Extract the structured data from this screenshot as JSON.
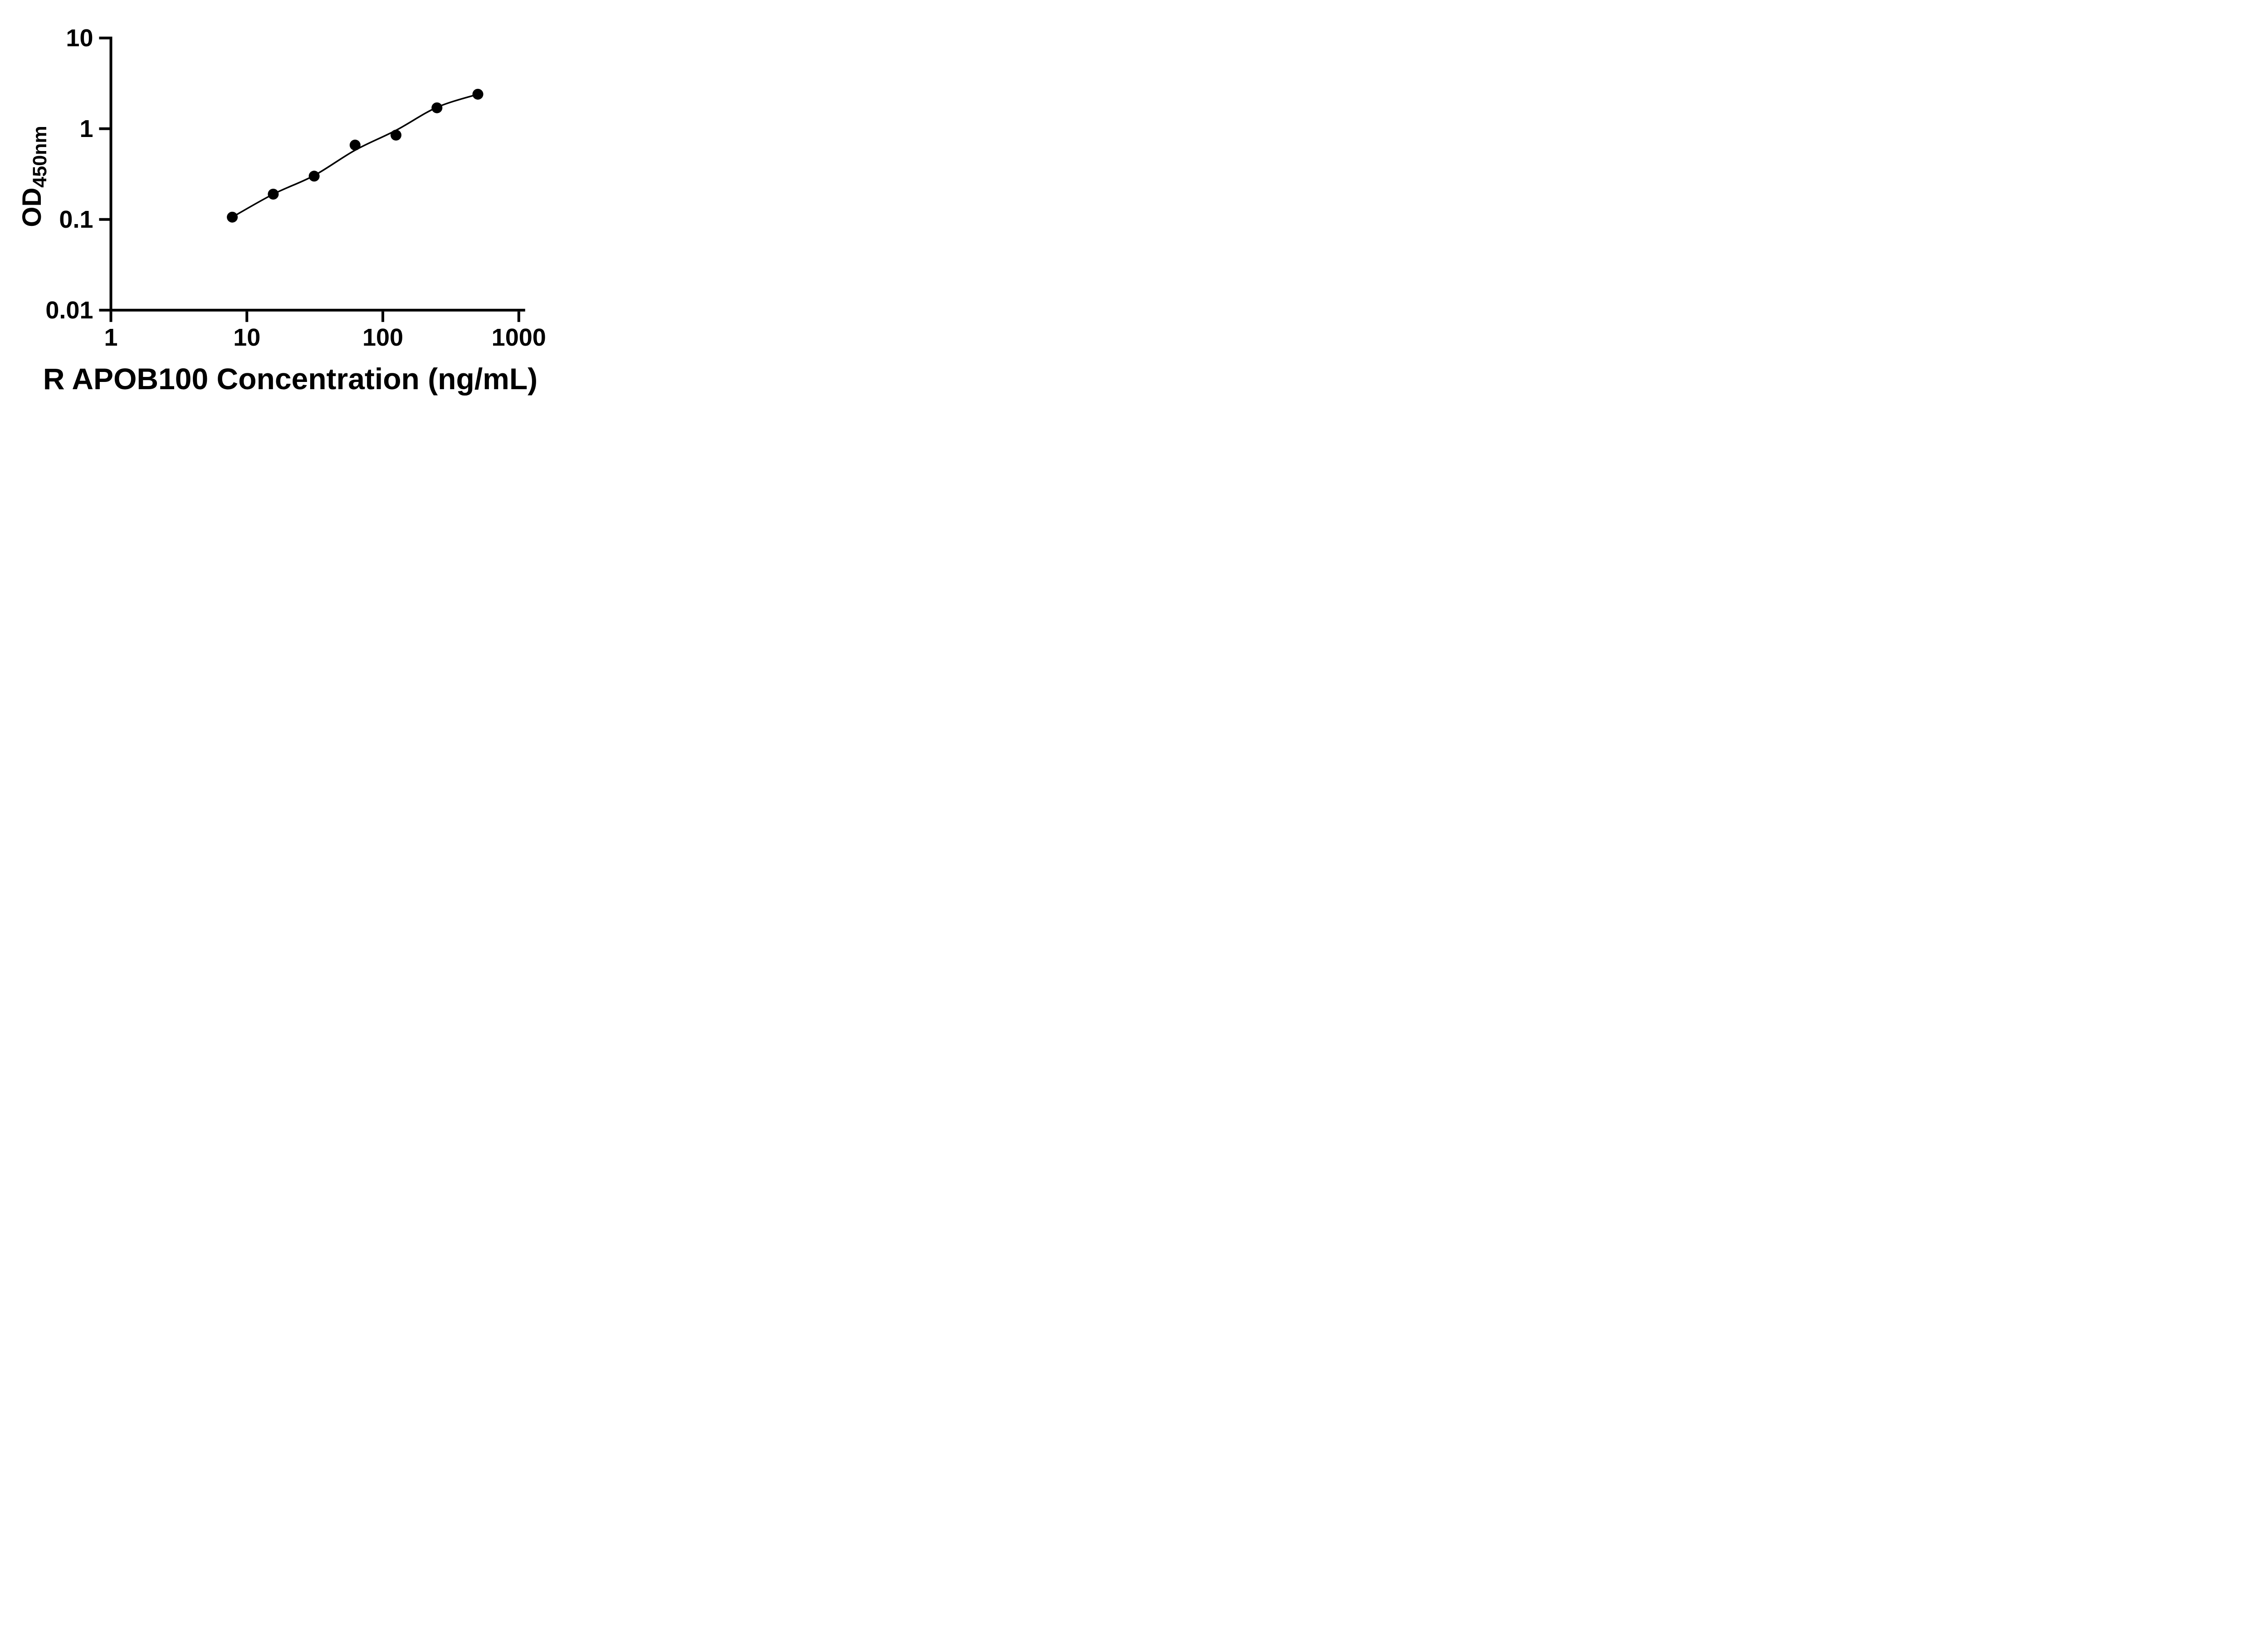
{
  "chart_data": {
    "type": "scatter",
    "title": "",
    "xlabel": "R APOB100 Concentration (ng/mL)",
    "ylabel_main": "OD",
    "ylabel_sub": "450nm",
    "x_scale": "log",
    "y_scale": "log",
    "xlim": [
      1,
      1000
    ],
    "ylim": [
      0.01,
      10
    ],
    "grid": false,
    "legend": false,
    "x_ticks": [
      {
        "value": 1,
        "label": "1"
      },
      {
        "value": 10,
        "label": "10"
      },
      {
        "value": 100,
        "label": "100"
      },
      {
        "value": 1000,
        "label": "1000"
      }
    ],
    "y_ticks": [
      {
        "value": 10,
        "label": "10"
      },
      {
        "value": 1,
        "label": "1"
      },
      {
        "value": 0.1,
        "label": "0.1"
      },
      {
        "value": 0.01,
        "label": "0.01"
      }
    ],
    "series": [
      {
        "name": "standard-points",
        "type": "scatter",
        "marker": "circle",
        "color": "#000000",
        "points": [
          {
            "x": 7.81,
            "y": 0.106
          },
          {
            "x": 15.63,
            "y": 0.19
          },
          {
            "x": 31.25,
            "y": 0.3
          },
          {
            "x": 62.5,
            "y": 0.66
          },
          {
            "x": 125,
            "y": 0.85
          },
          {
            "x": 250,
            "y": 1.7
          },
          {
            "x": 500,
            "y": 2.4
          }
        ]
      },
      {
        "name": "fit-curve",
        "type": "line",
        "color": "#000000",
        "points": [
          {
            "x": 7.81,
            "y": 0.106
          },
          {
            "x": 15.63,
            "y": 0.19
          },
          {
            "x": 31.25,
            "y": 0.305
          },
          {
            "x": 62.5,
            "y": 0.58
          },
          {
            "x": 125,
            "y": 0.96
          },
          {
            "x": 250,
            "y": 1.72
          },
          {
            "x": 500,
            "y": 2.4
          }
        ]
      }
    ],
    "colors": {
      "foreground": "#000000",
      "background": "#ffffff"
    }
  }
}
